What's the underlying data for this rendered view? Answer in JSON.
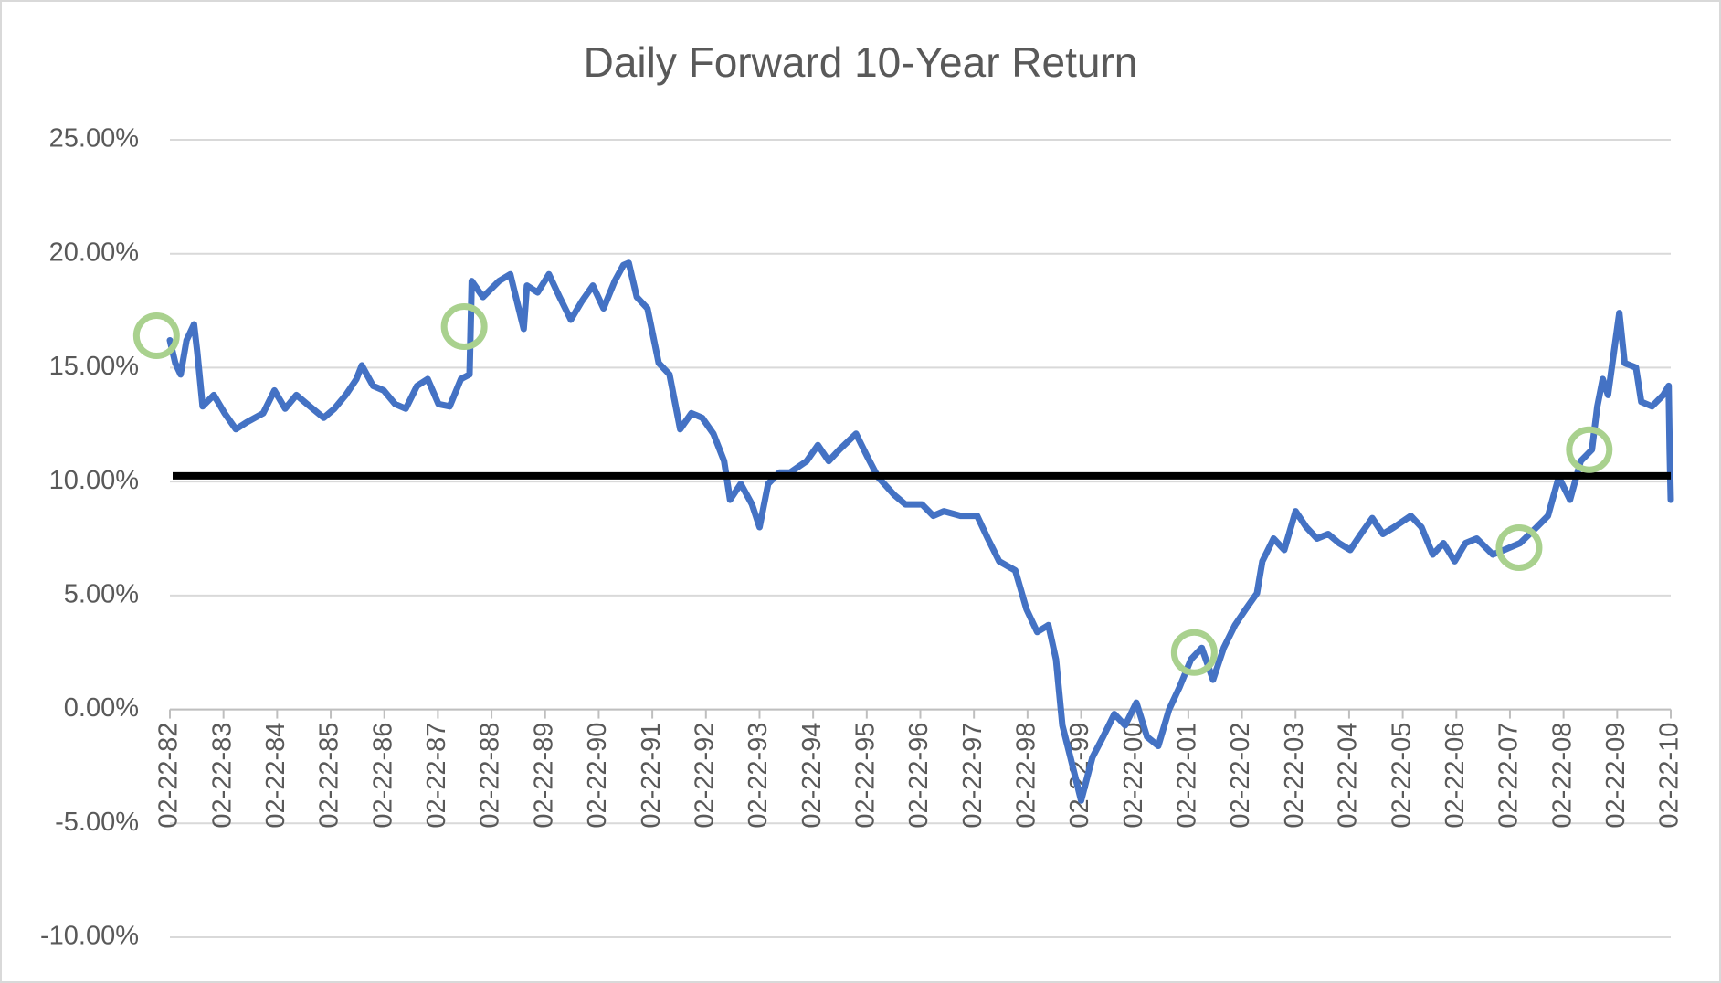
{
  "chart_data": {
    "type": "line",
    "title": "Daily Forward 10-Year Return",
    "x": [
      1982.0,
      1982.1,
      1982.2,
      1982.31,
      1982.45,
      1982.51,
      1982.61,
      1982.82,
      1983.02,
      1983.23,
      1983.43,
      1983.74,
      1983.95,
      1984.15,
      1984.36,
      1984.56,
      1984.87,
      1985.07,
      1985.28,
      1985.48,
      1985.58,
      1985.79,
      1985.99,
      1986.2,
      1986.4,
      1986.61,
      1986.81,
      1987.01,
      1987.22,
      1987.43,
      1987.59,
      1987.63,
      1987.84,
      1988.14,
      1988.35,
      1988.6,
      1988.66,
      1988.86,
      1989.07,
      1989.27,
      1989.48,
      1989.68,
      1989.89,
      1990.09,
      1990.3,
      1990.46,
      1990.56,
      1990.71,
      1990.91,
      1991.12,
      1991.32,
      1991.52,
      1991.73,
      1991.93,
      1992.14,
      1992.34,
      1992.45,
      1992.65,
      1992.86,
      1993.0,
      1993.16,
      1993.37,
      1993.57,
      1993.88,
      1994.09,
      1994.29,
      1994.49,
      1994.8,
      1995.01,
      1995.21,
      1995.52,
      1995.72,
      1996.03,
      1996.24,
      1996.44,
      1996.75,
      1997.06,
      1997.26,
      1997.47,
      1997.77,
      1997.98,
      1998.18,
      1998.39,
      1998.53,
      1998.65,
      1998.8,
      1999.0,
      1999.21,
      1999.41,
      1999.62,
      1999.82,
      2000.03,
      2000.23,
      2000.44,
      2000.64,
      2000.84,
      2001.05,
      2001.25,
      2001.46,
      2001.66,
      2001.87,
      2002.07,
      2002.28,
      2002.38,
      2002.59,
      2002.79,
      2003.0,
      2003.2,
      2003.4,
      2003.61,
      2003.81,
      2004.02,
      2004.22,
      2004.43,
      2004.63,
      2004.84,
      2005.15,
      2005.35,
      2005.56,
      2005.76,
      2005.97,
      2006.17,
      2006.38,
      2006.68,
      2006.89,
      2007.19,
      2007.5,
      2007.71,
      2007.91,
      2008.12,
      2008.32,
      2008.53,
      2008.63,
      2008.73,
      2008.83,
      2008.94,
      2009.04,
      2009.14,
      2009.35,
      2009.45,
      2009.65,
      2009.86,
      2009.96,
      2009.98,
      2010.0
    ],
    "series": [
      {
        "color": "#4472c4",
        "values": [
          16.2,
          15.2,
          14.7,
          16.2,
          16.9,
          15.7,
          13.3,
          13.8,
          13.0,
          12.3,
          12.6,
          13.0,
          14.0,
          13.2,
          13.8,
          13.4,
          12.8,
          13.2,
          13.8,
          14.5,
          15.1,
          14.2,
          14.0,
          13.4,
          13.2,
          14.2,
          14.5,
          13.4,
          13.3,
          14.5,
          14.7,
          18.8,
          18.1,
          18.8,
          19.1,
          16.7,
          18.6,
          18.3,
          19.1,
          18.1,
          17.1,
          17.9,
          18.6,
          17.6,
          18.8,
          19.5,
          19.6,
          18.1,
          17.6,
          15.2,
          14.7,
          12.3,
          13.0,
          12.8,
          12.1,
          10.9,
          9.2,
          9.9,
          9.0,
          8.0,
          9.9,
          10.4,
          10.4,
          10.9,
          11.6,
          10.9,
          11.4,
          12.1,
          11.1,
          10.2,
          9.4,
          9.0,
          9.0,
          8.5,
          8.7,
          8.5,
          8.5,
          7.5,
          6.5,
          6.1,
          4.4,
          3.4,
          3.7,
          2.2,
          -0.7,
          -2.1,
          -4.0,
          -2.1,
          -1.2,
          -0.2,
          -0.7,
          0.3,
          -1.2,
          -1.6,
          0.0,
          1.0,
          2.2,
          2.7,
          1.3,
          2.7,
          3.7,
          4.4,
          5.1,
          6.5,
          7.5,
          7.0,
          8.7,
          8.0,
          7.5,
          7.7,
          7.3,
          7.0,
          7.7,
          8.4,
          7.7,
          8.0,
          8.5,
          8.0,
          6.8,
          7.3,
          6.5,
          7.3,
          7.5,
          6.8,
          7.0,
          7.3,
          8.0,
          8.5,
          10.2,
          9.2,
          10.9,
          11.4,
          13.3,
          14.5,
          13.8,
          15.7,
          17.4,
          15.2,
          15.0,
          13.5,
          13.3,
          13.8,
          14.2,
          11.4,
          9.2
        ]
      }
    ],
    "hline": {
      "value": 10.25,
      "color": "#000000"
    },
    "highlights": {
      "color": "#a9d18e",
      "x": [
        1981.75,
        1987.49,
        2001.11,
        2007.17,
        2008.48
      ],
      "y": [
        16.4,
        16.8,
        2.5,
        7.1,
        11.4
      ]
    },
    "xlim": [
      1982,
      2010
    ],
    "xticks": [
      {
        "value": 1982,
        "label": "02-22-82"
      },
      {
        "value": 1983,
        "label": "02-22-83"
      },
      {
        "value": 1984,
        "label": "02-22-84"
      },
      {
        "value": 1985,
        "label": "02-22-85"
      },
      {
        "value": 1986,
        "label": "02-22-86"
      },
      {
        "value": 1987,
        "label": "02-22-87"
      },
      {
        "value": 1988,
        "label": "02-22-88"
      },
      {
        "value": 1989,
        "label": "02-22-89"
      },
      {
        "value": 1990,
        "label": "02-22-90"
      },
      {
        "value": 1991,
        "label": "02-22-91"
      },
      {
        "value": 1992,
        "label": "02-22-92"
      },
      {
        "value": 1993,
        "label": "02-22-93"
      },
      {
        "value": 1994,
        "label": "02-22-94"
      },
      {
        "value": 1995,
        "label": "02-22-95"
      },
      {
        "value": 1996,
        "label": "02-22-96"
      },
      {
        "value": 1997,
        "label": "02-22-97"
      },
      {
        "value": 1998,
        "label": "02-22-98"
      },
      {
        "value": 1999,
        "label": "02-22-99"
      },
      {
        "value": 2000,
        "label": "02-22-00"
      },
      {
        "value": 2001,
        "label": "02-22-01"
      },
      {
        "value": 2002,
        "label": "02-22-02"
      },
      {
        "value": 2003,
        "label": "02-22-03"
      },
      {
        "value": 2004,
        "label": "02-22-04"
      },
      {
        "value": 2005,
        "label": "02-22-05"
      },
      {
        "value": 2006,
        "label": "02-22-06"
      },
      {
        "value": 2007,
        "label": "02-22-07"
      },
      {
        "value": 2008,
        "label": "02-22-08"
      },
      {
        "value": 2009,
        "label": "02-22-09"
      },
      {
        "value": 2010,
        "label": "02-22-10"
      }
    ],
    "ylim": [
      -10,
      25
    ],
    "yticks": [
      {
        "value": -10,
        "label": "-10.00%"
      },
      {
        "value": -5,
        "label": "-5.00%"
      },
      {
        "value": 0,
        "label": "0.00%"
      },
      {
        "value": 5,
        "label": "5.00%"
      },
      {
        "value": 10,
        "label": "10.00%"
      },
      {
        "value": 15,
        "label": "15.00%"
      },
      {
        "value": 20,
        "label": "20.00%"
      },
      {
        "value": 25,
        "label": "25.00%"
      }
    ],
    "grid": true
  }
}
